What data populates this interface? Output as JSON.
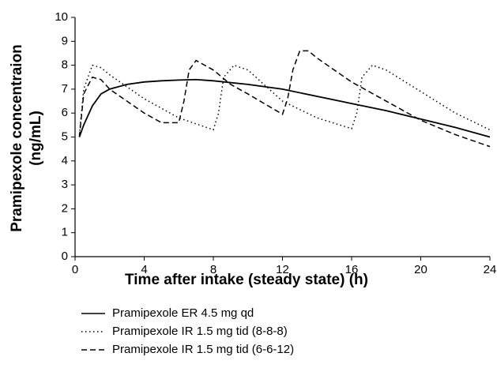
{
  "chart_data": {
    "type": "line",
    "xlabel": "Time after intake (steady state) (h)",
    "ylabel": [
      "Pramipexole concentraion",
      "(ng/mL)"
    ],
    "xlim": [
      0,
      24
    ],
    "xticks": [
      0,
      4,
      8,
      12,
      16,
      20,
      24
    ],
    "ylim": [
      0,
      10
    ],
    "yticks": [
      0,
      1,
      2,
      3,
      4,
      5,
      6,
      7,
      8,
      9,
      10
    ],
    "grid": false,
    "series": [
      {
        "name": "Pramipexole ER 4.5 mg qd",
        "color": "#000000",
        "dash": "solid",
        "x": [
          0.25,
          0.5,
          1,
          1.5,
          2,
          3,
          4,
          5,
          6,
          7,
          8,
          10,
          12,
          14,
          16,
          18,
          20,
          22,
          24
        ],
        "values": [
          5.0,
          5.5,
          6.3,
          6.8,
          7.0,
          7.2,
          7.3,
          7.35,
          7.38,
          7.4,
          7.35,
          7.2,
          7.0,
          6.7,
          6.4,
          6.1,
          5.75,
          5.4,
          5.0
        ]
      },
      {
        "name": "Pramipexole IR 1.5 mg tid (8-8-8)",
        "color": "#000000",
        "dash": "dotted",
        "x": [
          0.25,
          0.5,
          1,
          1.5,
          2,
          4,
          6,
          8,
          8.3,
          8.6,
          9.2,
          10,
          12,
          14,
          16,
          16.3,
          16.6,
          17.2,
          18,
          20,
          22,
          24
        ],
        "values": [
          5.1,
          7.0,
          8.0,
          7.9,
          7.6,
          6.6,
          5.8,
          5.3,
          6.0,
          7.5,
          8.0,
          7.8,
          6.5,
          5.8,
          5.35,
          6.0,
          7.5,
          8.0,
          7.8,
          6.9,
          6.0,
          5.3
        ]
      },
      {
        "name": "Pramipexole IR 1.5 mg tid (6-6-12)",
        "color": "#000000",
        "dash": "dashed",
        "x": [
          0.25,
          0.5,
          1,
          1.5,
          2,
          4,
          5,
          6,
          6.3,
          6.6,
          7,
          8,
          9,
          10,
          12,
          12.3,
          12.6,
          13,
          13.5,
          14,
          16,
          18,
          20,
          22,
          24
        ],
        "values": [
          5.0,
          6.8,
          7.5,
          7.4,
          7.0,
          6.0,
          5.6,
          5.6,
          6.5,
          7.8,
          8.2,
          7.8,
          7.2,
          6.8,
          5.95,
          6.6,
          7.8,
          8.6,
          8.6,
          8.3,
          7.3,
          6.5,
          5.7,
          5.1,
          4.6
        ]
      }
    ]
  }
}
